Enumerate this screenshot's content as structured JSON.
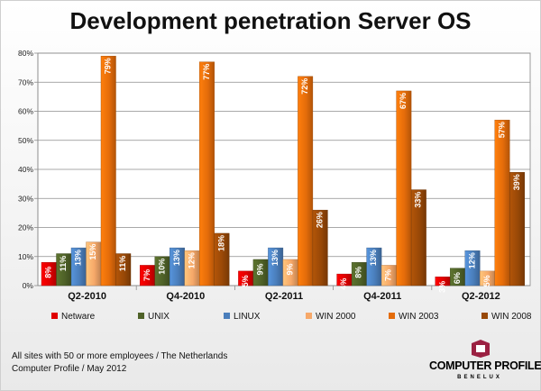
{
  "page": {
    "title": "Development penetration Server OS",
    "footnote": [
      "All sites with 50 or more employees / The Netherlands",
      "Computer Profile / May 2012"
    ],
    "logo": {
      "name": "COMPUTER PROFILE",
      "sub": "BENELUX",
      "mark_color": "#9b2142"
    }
  },
  "chart_data": {
    "type": "bar",
    "title": "Development penetration Server OS",
    "categories": [
      "Q2-2010",
      "Q4-2010",
      "Q2-2011",
      "Q4-2011",
      "Q2-2012"
    ],
    "ylim": [
      0,
      80
    ],
    "yticks": [
      0,
      10,
      20,
      30,
      40,
      50,
      60,
      70,
      80
    ],
    "ytick_labels": [
      "0%",
      "10%",
      "20%",
      "30%",
      "40%",
      "50%",
      "60%",
      "70%",
      "80%"
    ],
    "grid": true,
    "legend_position": "bottom",
    "series": [
      {
        "name": "Netware",
        "color": "#e00000",
        "values": [
          8,
          7,
          5,
          4,
          3
        ],
        "labels": [
          "8%",
          "7%",
          "5%",
          "4%",
          "3%"
        ]
      },
      {
        "name": "UNIX",
        "color": "#4f6228",
        "values": [
          11,
          10,
          9,
          8,
          6
        ],
        "labels": [
          "11%",
          "10%",
          "9%",
          "8%",
          "6%"
        ]
      },
      {
        "name": "LINUX",
        "color": "#4a7ebb",
        "values": [
          13,
          13,
          13,
          13,
          12
        ],
        "labels": [
          "13%",
          "13%",
          "13%",
          "13%",
          "12%"
        ]
      },
      {
        "name": "WIN 2000",
        "color": "#f6a869",
        "values": [
          15,
          12,
          9,
          7,
          5
        ],
        "labels": [
          "15%",
          "12%",
          "9%",
          "7%",
          "5%"
        ]
      },
      {
        "name": "WIN 2003",
        "color": "#e46c0a",
        "values": [
          79,
          77,
          72,
          67,
          57
        ],
        "labels": [
          "79%",
          "77%",
          "72%",
          "67%",
          "57%"
        ]
      },
      {
        "name": "WIN 2008",
        "color": "#984807",
        "values": [
          11,
          18,
          26,
          33,
          39
        ],
        "labels": [
          "11%",
          "18%",
          "26%",
          "33%",
          "39%"
        ]
      }
    ]
  }
}
